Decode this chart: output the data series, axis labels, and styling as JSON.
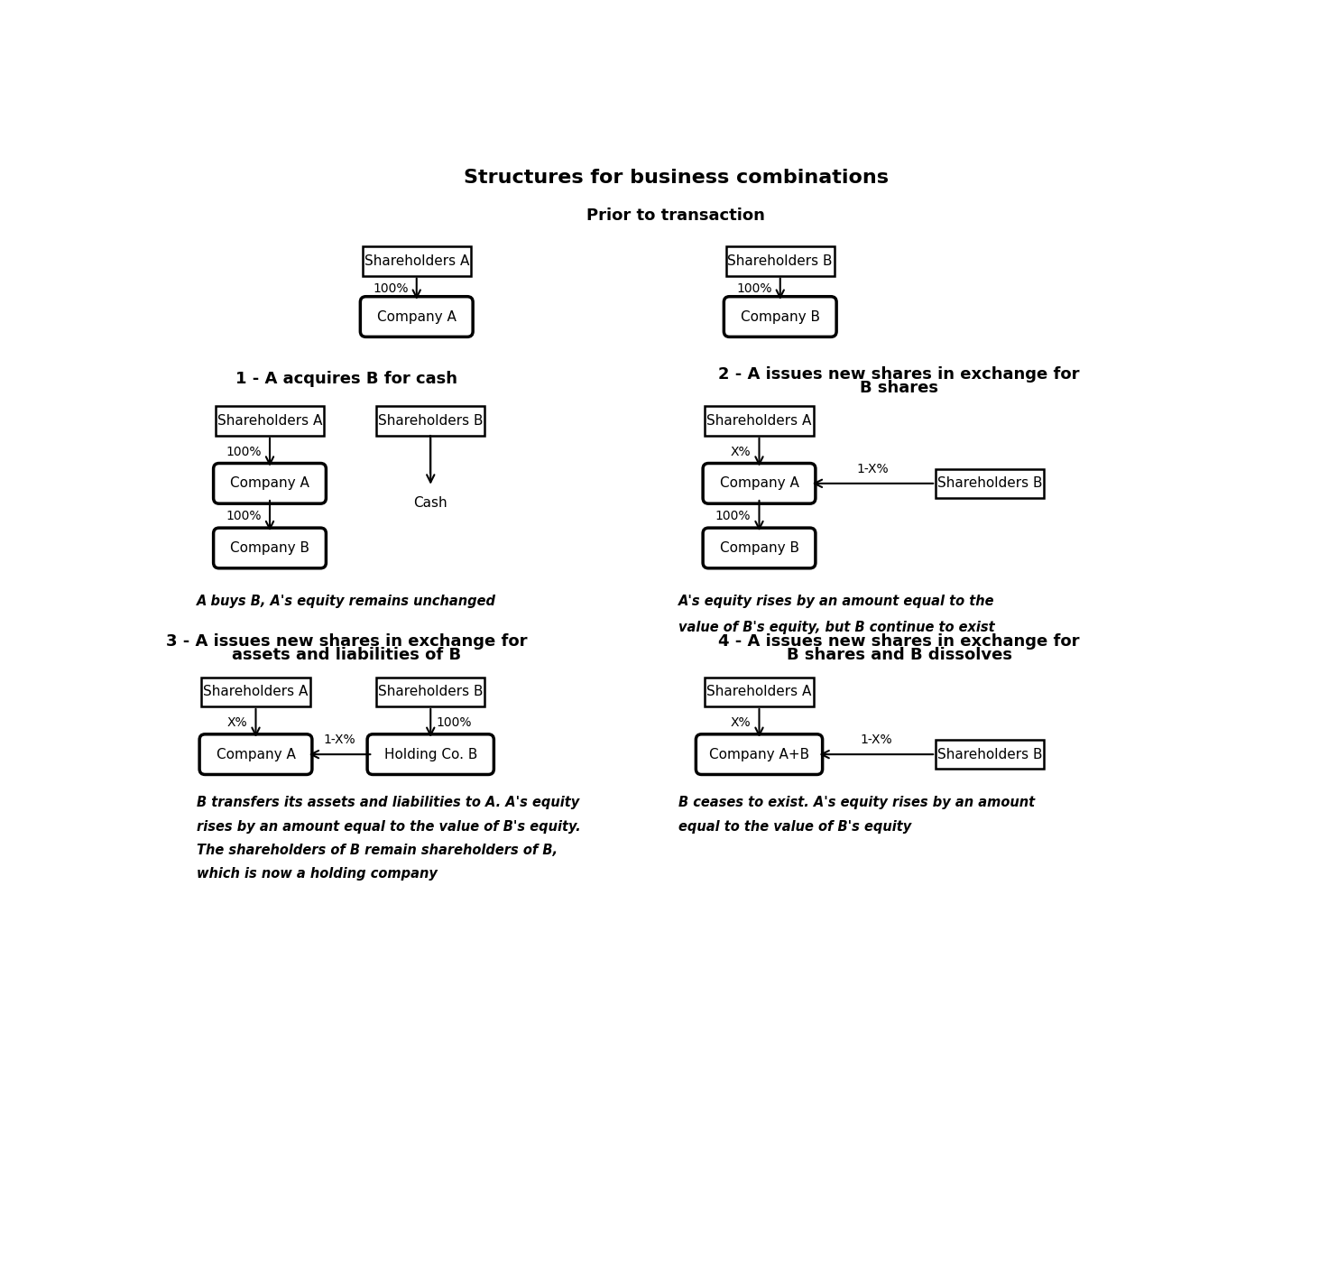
{
  "title": "Structures for business combinations",
  "bg_color": "#ffffff",
  "prior_label": "Prior to transaction",
  "s1_label_line1": "1 - A acquires B for cash",
  "s1_label_line2": "",
  "s2_label_line1": "2 - A issues new shares in exchange for",
  "s2_label_line2": "B shares",
  "s3_label_line1": "3 - A issues new shares in exchange for",
  "s3_label_line2": "assets and liabilities of B",
  "s4_label_line1": "4 - A issues new shares in exchange for",
  "s4_label_line2": "B shares and B dissolves",
  "cap1": "A buys B, A's equity remains unchanged",
  "cap2_line1": "A's equity rises by an amount equal to the",
  "cap2_line2": "value of B's equity, but B continue to exist",
  "cap3_line1": "B transfers its assets and liabilities to A. A's equity",
  "cap3_line2": "rises by an amount equal to the value of B's equity.",
  "cap3_line3": "The shareholders of B remain shareholders of B,",
  "cap3_line4": "which is now a holding company",
  "cap4_line1": "B ceases to exist. A's equity rises by an amount",
  "cap4_line2": "equal to the value of B's equity"
}
